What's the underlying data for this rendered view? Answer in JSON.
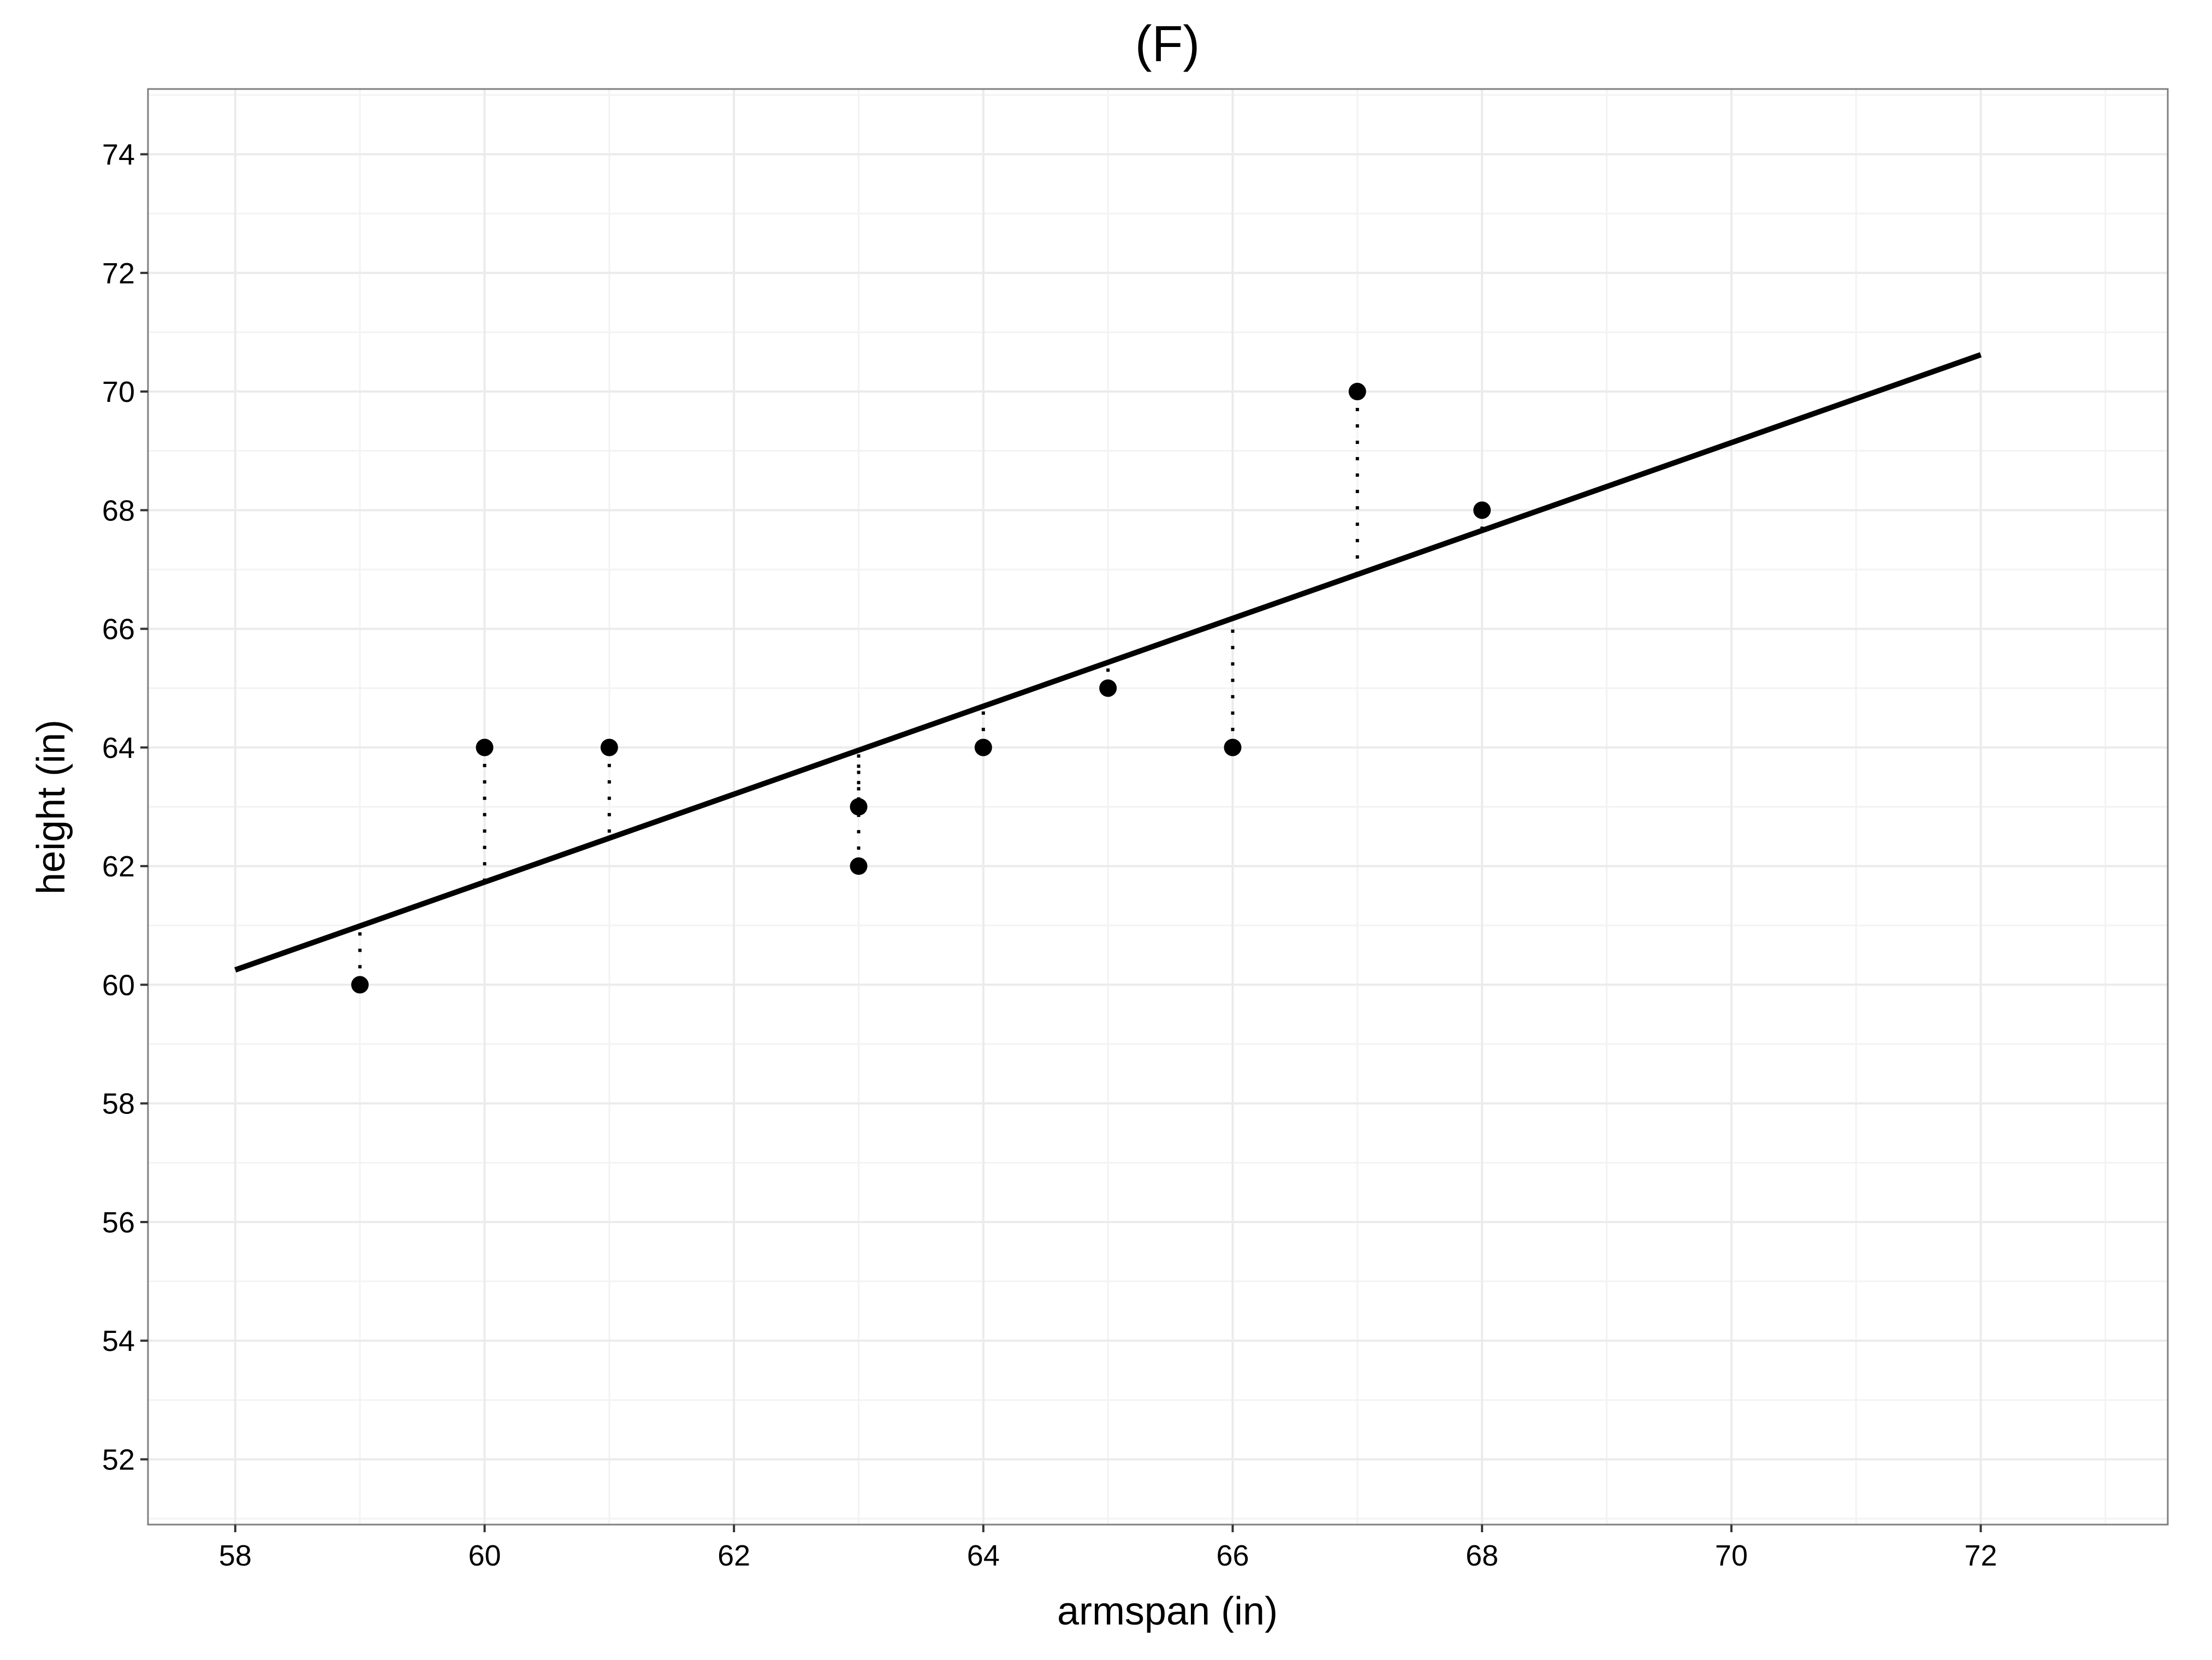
{
  "chart_data": {
    "type": "scatter",
    "title": "(F)",
    "xlabel": "armspan (in)",
    "ylabel": "height (in)",
    "xlim": [
      57.3,
      73.5
    ],
    "ylim": [
      50.9,
      75.1
    ],
    "xticks": [
      58,
      60,
      62,
      64,
      66,
      68,
      70,
      72
    ],
    "yticks": [
      52,
      54,
      56,
      58,
      60,
      62,
      64,
      66,
      68,
      70,
      72,
      74
    ],
    "grid": true,
    "points": [
      {
        "x": 59,
        "y": 60
      },
      {
        "x": 60,
        "y": 64
      },
      {
        "x": 61,
        "y": 64
      },
      {
        "x": 63,
        "y": 63
      },
      {
        "x": 63,
        "y": 62
      },
      {
        "x": 64,
        "y": 64
      },
      {
        "x": 65,
        "y": 65
      },
      {
        "x": 66,
        "y": 64
      },
      {
        "x": 67,
        "y": 70
      },
      {
        "x": 68,
        "y": 68
      }
    ],
    "fit_line": {
      "x": [
        58,
        72
      ],
      "y": [
        60.25,
        70.62
      ]
    },
    "residual_lines": "dotted",
    "colors": {
      "points": "#000000",
      "line": "#000000",
      "grid": "#ebebeb",
      "border": "#7f7f7f"
    }
  }
}
